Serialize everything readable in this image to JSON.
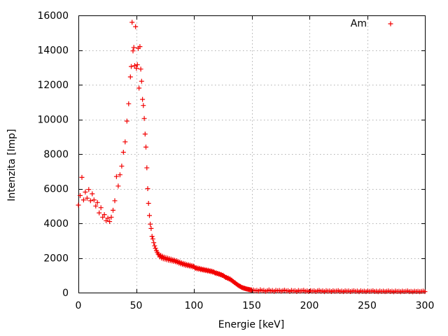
{
  "colors": {
    "background": "#ffffff",
    "axis": "#000000",
    "grid": "#b0b0b0",
    "marker": "#f20000",
    "text": "#000000"
  },
  "chart_data": {
    "type": "scatter",
    "title": "",
    "xlabel": "Energie [keV]",
    "ylabel": "Intenzita [Imp]",
    "xlim": [
      0,
      300
    ],
    "ylim": [
      0,
      16000
    ],
    "xticks": [
      0,
      50,
      100,
      150,
      200,
      250,
      300
    ],
    "yticks": [
      0,
      2000,
      4000,
      6000,
      8000,
      10000,
      12000,
      14000,
      16000
    ],
    "grid": true,
    "legend": {
      "label": "Am",
      "position": "top-right"
    },
    "marker": {
      "shape": "plus",
      "size": 7
    },
    "series": [
      {
        "name": "Am",
        "points": [
          [
            0,
            5050
          ],
          [
            1.5,
            5600
          ],
          [
            3,
            6650
          ],
          [
            4.5,
            5350
          ],
          [
            6,
            5800
          ],
          [
            7.5,
            5450
          ],
          [
            9,
            5950
          ],
          [
            10.5,
            5300
          ],
          [
            12,
            5700
          ],
          [
            13.5,
            5350
          ],
          [
            15,
            5000
          ],
          [
            16.5,
            5200
          ],
          [
            18,
            4600
          ],
          [
            19.5,
            4900
          ],
          [
            21,
            4350
          ],
          [
            22.5,
            4500
          ],
          [
            24,
            4150
          ],
          [
            25.5,
            4300
          ],
          [
            27,
            4100
          ],
          [
            28.5,
            4350
          ],
          [
            30,
            4750
          ],
          [
            31.5,
            5300
          ],
          [
            33,
            6700
          ],
          [
            34.5,
            6150
          ],
          [
            36,
            6800
          ],
          [
            37.5,
            7300
          ],
          [
            39,
            8100
          ],
          [
            40.5,
            8700
          ],
          [
            42,
            9900
          ],
          [
            43.5,
            10900
          ],
          [
            45,
            12450
          ],
          [
            45.75,
            13050
          ],
          [
            46.5,
            15600
          ],
          [
            47.25,
            13950
          ],
          [
            48,
            14150
          ],
          [
            48.75,
            13100
          ],
          [
            49.5,
            15350
          ],
          [
            50.25,
            12950
          ],
          [
            51,
            13150
          ],
          [
            51.75,
            14100
          ],
          [
            52.5,
            11800
          ],
          [
            53.25,
            14200
          ],
          [
            54,
            12900
          ],
          [
            54.75,
            12200
          ],
          [
            55.5,
            11150
          ],
          [
            56.25,
            10800
          ],
          [
            57,
            10050
          ],
          [
            57.75,
            9150
          ],
          [
            58.5,
            8400
          ],
          [
            59.25,
            7200
          ],
          [
            60,
            6000
          ],
          [
            60.75,
            5150
          ],
          [
            61.5,
            4450
          ],
          [
            62.25,
            3950
          ],
          [
            63,
            3700
          ],
          [
            63.75,
            3250
          ],
          [
            64.5,
            3100
          ],
          [
            65.25,
            2880
          ],
          [
            66,
            2700
          ],
          [
            66.75,
            2560
          ],
          [
            67.5,
            2430
          ],
          [
            68.25,
            2330
          ],
          [
            69,
            2230
          ],
          [
            69.75,
            2180
          ],
          [
            70.5,
            2060
          ],
          [
            71.25,
            2150
          ],
          [
            72,
            1990
          ],
          [
            72.75,
            2100
          ],
          [
            73.5,
            1950
          ],
          [
            74.25,
            2050
          ],
          [
            75,
            1930
          ],
          [
            75.75,
            2020
          ],
          [
            76.5,
            1900
          ],
          [
            77.25,
            1990
          ],
          [
            78,
            1870
          ],
          [
            78.75,
            1960
          ],
          [
            79.5,
            1850
          ],
          [
            80.25,
            1930
          ],
          [
            81,
            1830
          ],
          [
            81.75,
            1900
          ],
          [
            82.5,
            1800
          ],
          [
            83.25,
            1870
          ],
          [
            84,
            1780
          ],
          [
            84.75,
            1840
          ],
          [
            85.5,
            1740
          ],
          [
            86.25,
            1800
          ],
          [
            87,
            1700
          ],
          [
            87.75,
            1760
          ],
          [
            88.5,
            1660
          ],
          [
            89.25,
            1720
          ],
          [
            90,
            1630
          ],
          [
            90.75,
            1690
          ],
          [
            91.5,
            1600
          ],
          [
            92.25,
            1660
          ],
          [
            93,
            1570
          ],
          [
            93.75,
            1630
          ],
          [
            94.5,
            1550
          ],
          [
            95.25,
            1610
          ],
          [
            96,
            1530
          ],
          [
            96.75,
            1580
          ],
          [
            97.5,
            1500
          ],
          [
            98.25,
            1560
          ],
          [
            99,
            1480
          ],
          [
            99.75,
            1530
          ],
          [
            100.5,
            1460
          ],
          [
            101.25,
            1400
          ],
          [
            102,
            1440
          ],
          [
            102.75,
            1370
          ],
          [
            103.5,
            1420
          ],
          [
            104.25,
            1350
          ],
          [
            105,
            1400
          ],
          [
            105.75,
            1330
          ],
          [
            106.5,
            1370
          ],
          [
            107.25,
            1310
          ],
          [
            108,
            1350
          ],
          [
            108.75,
            1290
          ],
          [
            109.5,
            1330
          ],
          [
            110.25,
            1270
          ],
          [
            111,
            1310
          ],
          [
            111.75,
            1250
          ],
          [
            112.5,
            1290
          ],
          [
            113.25,
            1230
          ],
          [
            114,
            1260
          ],
          [
            114.75,
            1210
          ],
          [
            115.5,
            1240
          ],
          [
            116.25,
            1180
          ],
          [
            117,
            1210
          ],
          [
            117.75,
            1160
          ],
          [
            118.5,
            1120
          ],
          [
            119.25,
            1140
          ],
          [
            120,
            1090
          ],
          [
            120.75,
            1110
          ],
          [
            121.5,
            1060
          ],
          [
            122.25,
            1080
          ],
          [
            123,
            1030
          ],
          [
            123.75,
            1040
          ],
          [
            124.5,
            990
          ],
          [
            125.25,
            1000
          ],
          [
            126,
            950
          ],
          [
            126.75,
            920
          ],
          [
            127.5,
            870
          ],
          [
            128.25,
            880
          ],
          [
            129,
            830
          ],
          [
            129.75,
            840
          ],
          [
            130.5,
            780
          ],
          [
            131.25,
            790
          ],
          [
            132,
            730
          ],
          [
            132.75,
            720
          ],
          [
            133.5,
            660
          ],
          [
            134.25,
            640
          ],
          [
            135,
            580
          ],
          [
            135.75,
            560
          ],
          [
            136.5,
            510
          ],
          [
            137.25,
            480
          ],
          [
            138,
            440
          ],
          [
            138.75,
            410
          ],
          [
            139.5,
            370
          ],
          [
            140.25,
            350
          ],
          [
            141,
            320
          ],
          [
            141.75,
            290
          ],
          [
            142.5,
            280
          ],
          [
            143.25,
            255
          ],
          [
            144,
            245
          ],
          [
            144.75,
            225
          ],
          [
            145.5,
            215
          ],
          [
            146.25,
            200
          ],
          [
            147,
            190
          ],
          [
            147.75,
            175
          ],
          [
            148.5,
            170
          ],
          [
            149.25,
            155
          ],
          [
            150,
            150
          ],
          [
            151.5,
            150
          ],
          [
            153,
            105
          ],
          [
            154.5,
            135
          ],
          [
            156,
            85
          ],
          [
            157.5,
            160
          ],
          [
            159,
            110
          ],
          [
            160.5,
            130
          ],
          [
            162,
            75
          ],
          [
            163.5,
            115
          ],
          [
            165,
            150
          ],
          [
            166.5,
            90
          ],
          [
            168,
            120
          ],
          [
            169.5,
            70
          ],
          [
            171,
            135
          ],
          [
            172.5,
            100
          ],
          [
            174,
            125
          ],
          [
            175.5,
            80
          ],
          [
            177,
            110
          ],
          [
            178.5,
            140
          ],
          [
            180,
            95
          ],
          [
            181.5,
            115
          ],
          [
            183,
            65
          ],
          [
            184.5,
            125
          ],
          [
            186,
            90
          ],
          [
            187.5,
            110
          ],
          [
            189,
            60
          ],
          [
            190.5,
            120
          ],
          [
            192,
            85
          ],
          [
            193.5,
            105
          ],
          [
            195,
            130
          ],
          [
            196.5,
            75
          ],
          [
            198,
            100
          ],
          [
            199.5,
            60
          ],
          [
            201,
            115
          ],
          [
            202.5,
            85
          ],
          [
            204,
            105
          ],
          [
            205.5,
            65
          ],
          [
            207,
            95
          ],
          [
            208.5,
            120
          ],
          [
            210,
            75
          ],
          [
            211.5,
            100
          ],
          [
            213,
            55
          ],
          [
            214.5,
            110
          ],
          [
            216,
            80
          ],
          [
            217.5,
            95
          ],
          [
            219,
            60
          ],
          [
            220.5,
            105
          ],
          [
            222,
            75
          ],
          [
            223.5,
            90
          ],
          [
            225,
            115
          ],
          [
            226.5,
            65
          ],
          [
            228,
            90
          ],
          [
            229.5,
            55
          ],
          [
            231,
            100
          ],
          [
            232.5,
            75
          ],
          [
            234,
            95
          ],
          [
            235.5,
            60
          ],
          [
            237,
            85
          ],
          [
            238.5,
            105
          ],
          [
            240,
            70
          ],
          [
            241.5,
            90
          ],
          [
            243,
            50
          ],
          [
            244.5,
            100
          ],
          [
            246,
            70
          ],
          [
            247.5,
            85
          ],
          [
            249,
            55
          ],
          [
            250.5,
            95
          ],
          [
            252,
            70
          ],
          [
            253.5,
            80
          ],
          [
            255,
            105
          ],
          [
            256.5,
            60
          ],
          [
            258,
            80
          ],
          [
            259.5,
            50
          ],
          [
            261,
            90
          ],
          [
            262.5,
            65
          ],
          [
            264,
            85
          ],
          [
            265.5,
            55
          ],
          [
            267,
            75
          ],
          [
            268.5,
            95
          ],
          [
            270,
            60
          ],
          [
            271.5,
            80
          ],
          [
            273,
            45
          ],
          [
            274.5,
            90
          ],
          [
            276,
            65
          ],
          [
            277.5,
            75
          ],
          [
            279,
            50
          ],
          [
            280.5,
            85
          ],
          [
            282,
            60
          ],
          [
            283.5,
            75
          ],
          [
            285,
            95
          ],
          [
            286.5,
            55
          ],
          [
            288,
            70
          ],
          [
            289.5,
            45
          ],
          [
            291,
            80
          ],
          [
            292.5,
            60
          ],
          [
            294,
            75
          ],
          [
            295.5,
            50
          ],
          [
            297,
            70
          ],
          [
            298.5,
            85
          ],
          [
            300,
            55
          ]
        ]
      }
    ]
  }
}
